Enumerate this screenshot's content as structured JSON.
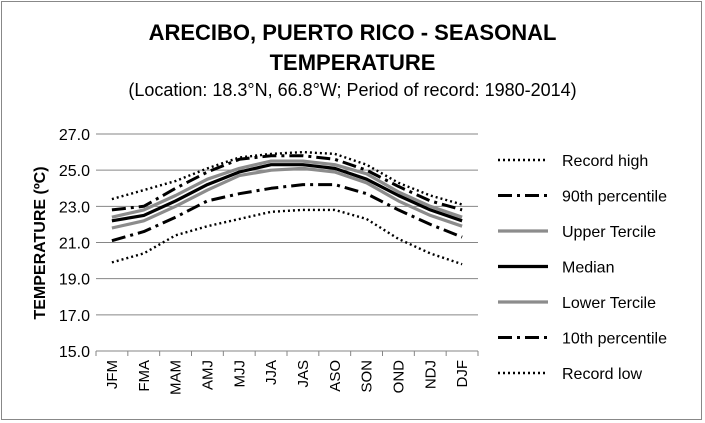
{
  "chart_data": {
    "type": "line",
    "title_line1": "ARECIBO, PUERTO RICO - SEASONAL",
    "title_line2": "TEMPERATURE",
    "subtitle": "(Location: 18.3°N, 66.8°W; Period of record: 1980-2014)",
    "ylabel": "TEMPERATURE (ºC)",
    "xlabel": "",
    "ylim": [
      15.0,
      27.0
    ],
    "yticks": [
      "15.0",
      "17.0",
      "19.0",
      "21.0",
      "23.0",
      "25.0",
      "27.0"
    ],
    "categories": [
      "JFM",
      "FMA",
      "MAM",
      "AMJ",
      "MJJ",
      "JJA",
      "JAS",
      "ASO",
      "SON",
      "OND",
      "NDJ",
      "DJF"
    ],
    "grid": "horizontal",
    "legend_position": "right",
    "series": [
      {
        "name": "Record high",
        "color": "#000000",
        "style": "dotted",
        "values": [
          23.4,
          23.9,
          24.4,
          25.1,
          25.7,
          25.9,
          26.0,
          25.9,
          25.3,
          24.3,
          23.6,
          23.1
        ]
      },
      {
        "name": "90th percentile",
        "color": "#000000",
        "style": "dashdot",
        "values": [
          22.8,
          23.0,
          24.0,
          24.9,
          25.6,
          25.8,
          25.8,
          25.6,
          25.0,
          24.1,
          23.3,
          22.8
        ]
      },
      {
        "name": "Upper Tercile",
        "color": "#8c8c8c",
        "style": "solid",
        "values": [
          22.4,
          22.8,
          23.6,
          24.5,
          25.1,
          25.5,
          25.5,
          25.3,
          24.8,
          23.8,
          23.0,
          22.4
        ]
      },
      {
        "name": "Median",
        "color": "#000000",
        "style": "solid",
        "values": [
          22.2,
          22.5,
          23.3,
          24.2,
          24.9,
          25.3,
          25.3,
          25.1,
          24.5,
          23.6,
          22.8,
          22.2
        ]
      },
      {
        "name": "Lower Tercile",
        "color": "#8c8c8c",
        "style": "solid",
        "values": [
          21.8,
          22.2,
          23.0,
          23.9,
          24.7,
          25.0,
          25.1,
          24.9,
          24.3,
          23.3,
          22.5,
          21.9
        ]
      },
      {
        "name": "10th percentile",
        "color": "#000000",
        "style": "dashdot",
        "values": [
          21.1,
          21.6,
          22.4,
          23.3,
          23.7,
          24.0,
          24.2,
          24.2,
          23.7,
          22.8,
          22.0,
          21.3
        ]
      },
      {
        "name": "Record low",
        "color": "#000000",
        "style": "dotted",
        "values": [
          19.9,
          20.4,
          21.4,
          21.9,
          22.3,
          22.7,
          22.8,
          22.8,
          22.3,
          21.2,
          20.4,
          19.8
        ]
      }
    ]
  }
}
